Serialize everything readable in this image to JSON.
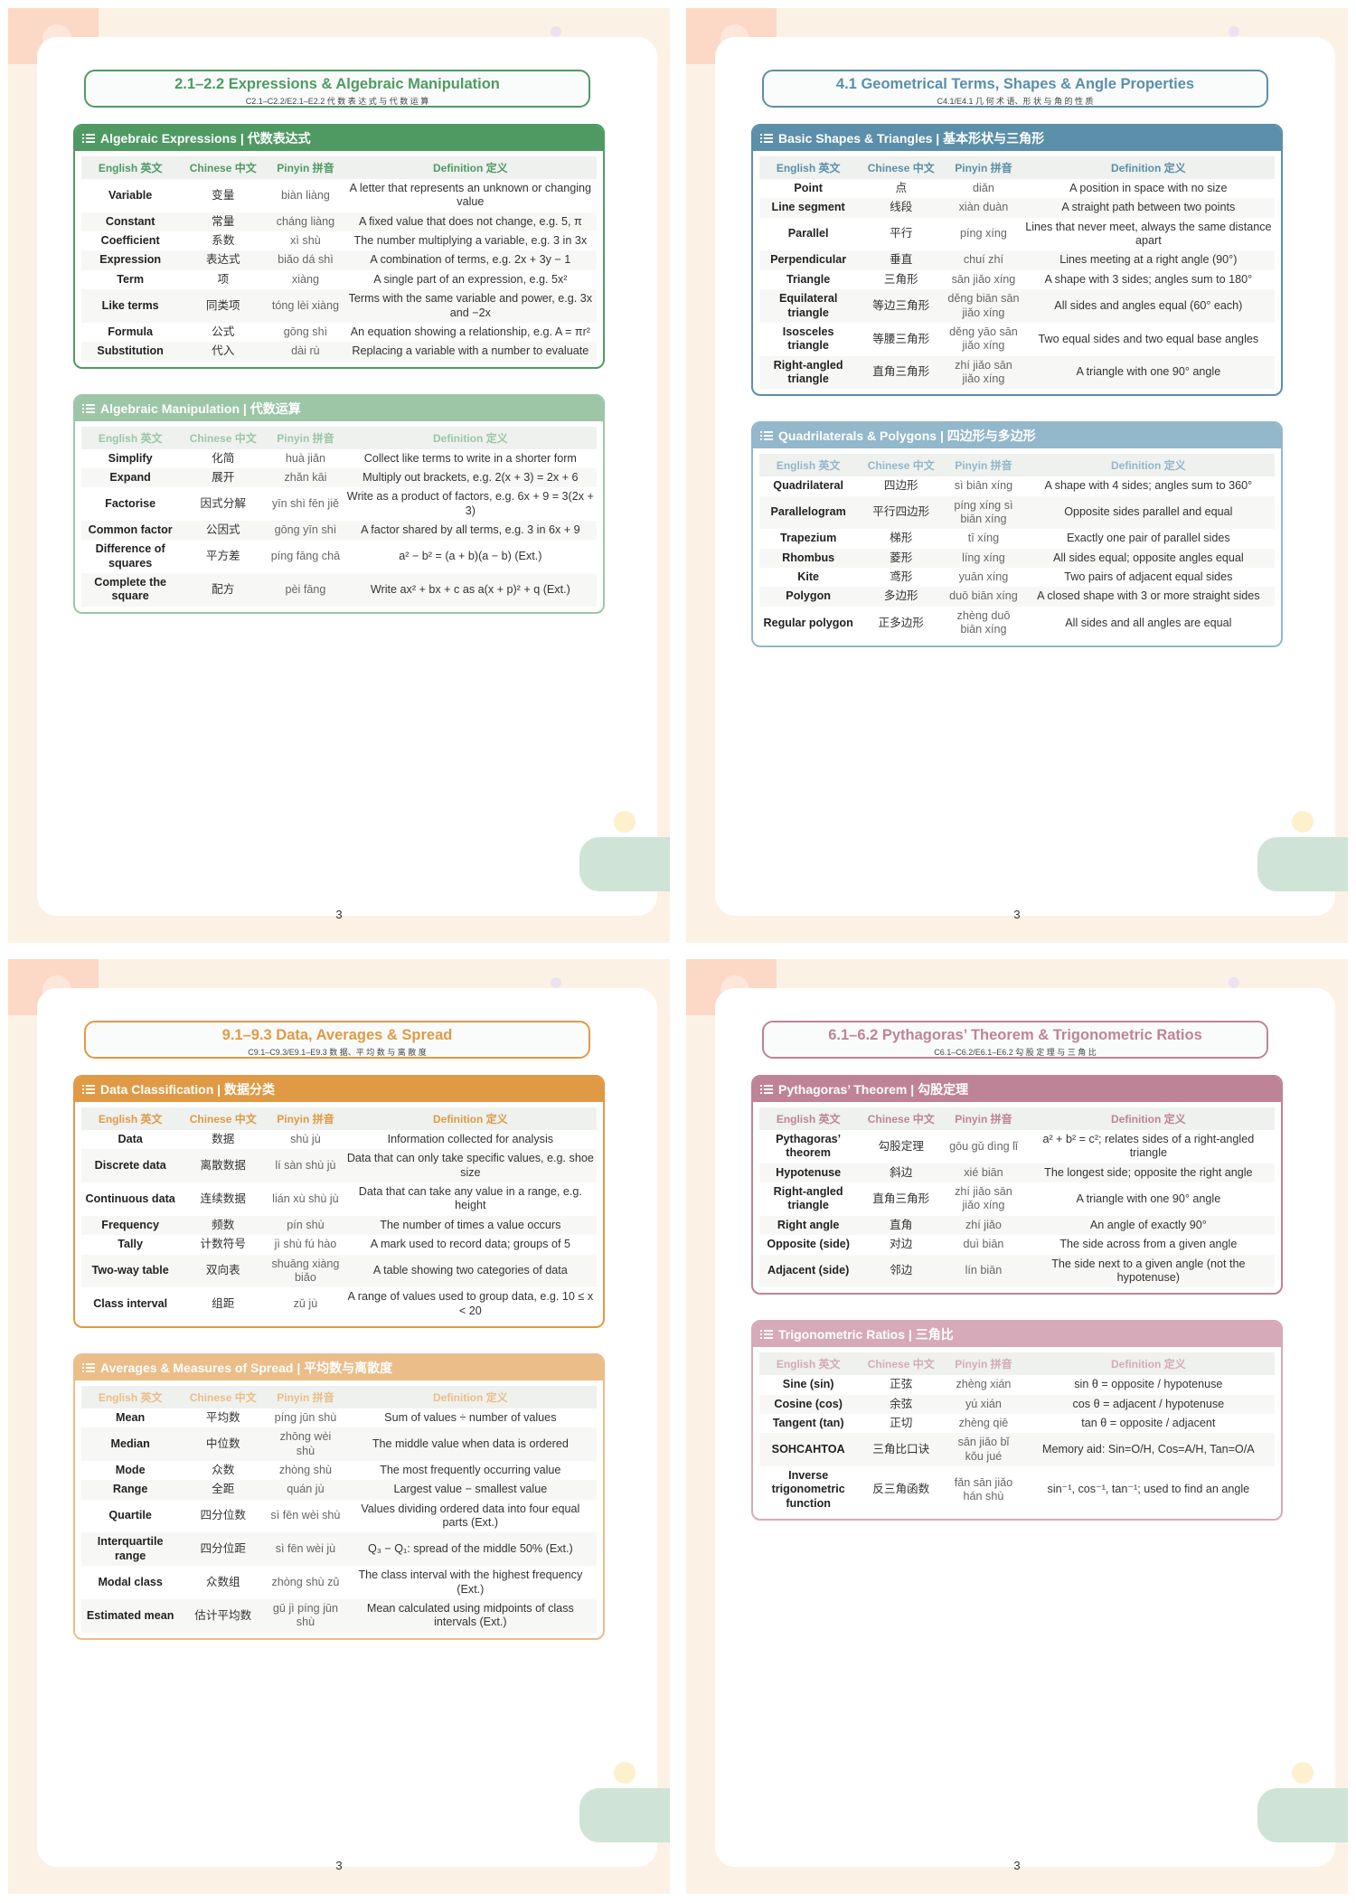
{
  "columns": [
    "English 英文",
    "Chinese 中文",
    "Pinyin 拼音",
    "Definition 定义"
  ],
  "pages": [
    {
      "title": "2.1–2.2 Expressions & Algebraic Manipulation",
      "subtitle": "C2.1–C2.2/E2.1–E2.2 代 数 表 达 式 与 代 数 运 算",
      "page_number": "3",
      "sections": [
        {
          "heading": "Algebraic Expressions | 代数表达式",
          "rows": [
            [
              "Variable",
              "变量",
              "biàn liàng",
              "A letter that represents an unknown or changing value"
            ],
            [
              "Constant",
              "常量",
              "cháng liàng",
              "A fixed value that does not change, e.g. 5, π"
            ],
            [
              "Coefficient",
              "系数",
              "xì shù",
              "The number multiplying a variable, e.g. 3 in 3x"
            ],
            [
              "Expression",
              "表达式",
              "biǎo dá shì",
              "A combination of terms, e.g. 2x + 3y − 1"
            ],
            [
              "Term",
              "项",
              "xiàng",
              "A single part of an expression, e.g. 5x²"
            ],
            [
              "Like terms",
              "同类项",
              "tóng lèi xiàng",
              "Terms with the same variable and power, e.g. 3x and −2x"
            ],
            [
              "Formula",
              "公式",
              "gōng shì",
              "An equation showing a relationship, e.g. A = πr²"
            ],
            [
              "Substitution",
              "代入",
              "dài rù",
              "Replacing a variable with a number to evaluate"
            ]
          ]
        },
        {
          "heading": "Algebraic Manipulation | 代数运算",
          "rows": [
            [
              "Simplify",
              "化简",
              "huà jiǎn",
              "Collect like terms to write in a shorter form"
            ],
            [
              "Expand",
              "展开",
              "zhǎn kāi",
              "Multiply out brackets, e.g. 2(x + 3) = 2x + 6"
            ],
            [
              "Factorise",
              "因式分解",
              "yīn shì fēn jiě",
              "Write as a product of factors, e.g. 6x + 9 = 3(2x + 3)"
            ],
            [
              "Common factor",
              "公因式",
              "gōng yīn shì",
              "A factor shared by all terms, e.g. 3 in 6x + 9"
            ],
            [
              "Difference of squares",
              "平方差",
              "píng fāng chā",
              "a² − b² = (a + b)(a − b) (Ext.)"
            ],
            [
              "Complete the square",
              "配方",
              "pèi fāng",
              "Write ax² + bx + c as a(x + p)² + q (Ext.)"
            ]
          ]
        }
      ]
    },
    {
      "title": "4.1 Geometrical Terms, Shapes & Angle Properties",
      "subtitle": "C4.1/E4.1 几 何 术 语、形 状 与 角 的 性 质",
      "page_number": "3",
      "sections": [
        {
          "heading": "Basic Shapes & Triangles | 基本形状与三角形",
          "rows": [
            [
              "Point",
              "点",
              "diǎn",
              "A position in space with no size"
            ],
            [
              "Line segment",
              "线段",
              "xiàn duàn",
              "A straight path between two points"
            ],
            [
              "Parallel",
              "平行",
              "píng xíng",
              "Lines that never meet, always the same distance apart"
            ],
            [
              "Perpendicular",
              "垂直",
              "chuí zhí",
              "Lines meeting at a right angle (90°)"
            ],
            [
              "Triangle",
              "三角形",
              "sān jiǎo xíng",
              "A shape with 3 sides; angles sum to 180°"
            ],
            [
              "Equilateral triangle",
              "等边三角形",
              "děng biān sān jiǎo xíng",
              "All sides and angles equal (60° each)"
            ],
            [
              "Isosceles triangle",
              "等腰三角形",
              "děng yāo sān jiǎo xíng",
              "Two equal sides and two equal base angles"
            ],
            [
              "Right-angled triangle",
              "直角三角形",
              "zhí jiǎo sān jiǎo xíng",
              "A triangle with one 90° angle"
            ]
          ]
        },
        {
          "heading": "Quadrilaterals & Polygons | 四边形与多边形",
          "rows": [
            [
              "Quadrilateral",
              "四边形",
              "sì biān xíng",
              "A shape with 4 sides; angles sum to 360°"
            ],
            [
              "Parallelogram",
              "平行四边形",
              "píng xíng sì biān xíng",
              "Opposite sides parallel and equal"
            ],
            [
              "Trapezium",
              "梯形",
              "tī xíng",
              "Exactly one pair of parallel sides"
            ],
            [
              "Rhombus",
              "菱形",
              "líng xíng",
              "All sides equal; opposite angles equal"
            ],
            [
              "Kite",
              "鸢形",
              "yuān xíng",
              "Two pairs of adjacent equal sides"
            ],
            [
              "Polygon",
              "多边形",
              "duō biān xíng",
              "A closed shape with 3 or more straight sides"
            ],
            [
              "Regular polygon",
              "正多边形",
              "zhèng duō biān xíng",
              "All sides and all angles are equal"
            ]
          ]
        }
      ]
    },
    {
      "title": "9.1–9.3 Data, Averages & Spread",
      "subtitle": "C9.1–C9.3/E9.1–E9.3 数 据、平 均 数 与 离 散 度",
      "page_number": "3",
      "sections": [
        {
          "heading": "Data Classification | 数据分类",
          "rows": [
            [
              "Data",
              "数据",
              "shù jù",
              "Information collected for analysis"
            ],
            [
              "Discrete data",
              "离散数据",
              "lí sàn shù jù",
              "Data that can only take specific values, e.g. shoe size"
            ],
            [
              "Continuous data",
              "连续数据",
              "lián xù shù jù",
              "Data that can take any value in a range, e.g. height"
            ],
            [
              "Frequency",
              "频数",
              "pín shù",
              "The number of times a value occurs"
            ],
            [
              "Tally",
              "计数符号",
              "jì shù fú hào",
              "A mark used to record data; groups of 5"
            ],
            [
              "Two-way table",
              "双向表",
              "shuāng xiàng biǎo",
              "A table showing two categories of data"
            ],
            [
              "Class interval",
              "组距",
              "zǔ jù",
              "A range of values used to group data, e.g. 10 ≤ x < 20"
            ]
          ]
        },
        {
          "heading": "Averages & Measures of Spread | 平均数与离散度",
          "rows": [
            [
              "Mean",
              "平均数",
              "píng jūn shù",
              "Sum of values ÷ number of values"
            ],
            [
              "Median",
              "中位数",
              "zhōng wèi shù",
              "The middle value when data is ordered"
            ],
            [
              "Mode",
              "众数",
              "zhòng shù",
              "The most frequently occurring value"
            ],
            [
              "Range",
              "全距",
              "quán jù",
              "Largest value − smallest value"
            ],
            [
              "Quartile",
              "四分位数",
              "sì fēn wèi shù",
              "Values dividing ordered data into four equal parts (Ext.)"
            ],
            [
              "Interquartile range",
              "四分位距",
              "sì fēn wèi jù",
              "Q₃ − Q₁: spread of the middle 50% (Ext.)"
            ],
            [
              "Modal class",
              "众数组",
              "zhòng shù zǔ",
              "The class interval with the highest frequency (Ext.)"
            ],
            [
              "Estimated mean",
              "估计平均数",
              "gū jì píng jūn shù",
              "Mean calculated using midpoints of class intervals (Ext.)"
            ]
          ]
        }
      ]
    },
    {
      "title": "6.1–6.2 Pythagoras’ Theorem & Trigonometric Ratios",
      "subtitle": "C6.1–C6.2/E6.1–E6.2 勾 股 定 理 与 三 角 比",
      "page_number": "3",
      "sections": [
        {
          "heading": "Pythagoras’ Theorem | 勾股定理",
          "rows": [
            [
              "Pythagoras’ theorem",
              "勾股定理",
              "gōu gǔ dìng lǐ",
              "a² + b² = c²; relates sides of a right-angled triangle"
            ],
            [
              "Hypotenuse",
              "斜边",
              "xié biān",
              "The longest side; opposite the right angle"
            ],
            [
              "Right-angled triangle",
              "直角三角形",
              "zhí jiǎo sān jiǎo xíng",
              "A triangle with one 90° angle"
            ],
            [
              "Right angle",
              "直角",
              "zhí jiǎo",
              "An angle of exactly 90°"
            ],
            [
              "Opposite (side)",
              "对边",
              "duì biān",
              "The side across from a given angle"
            ],
            [
              "Adjacent (side)",
              "邻边",
              "lín biān",
              "The side next to a given angle (not the hypotenuse)"
            ]
          ]
        },
        {
          "heading": "Trigonometric Ratios | 三角比",
          "rows": [
            [
              "Sine (sin)",
              "正弦",
              "zhèng xián",
              "sin θ = opposite / hypotenuse"
            ],
            [
              "Cosine (cos)",
              "余弦",
              "yú xián",
              "cos θ = adjacent / hypotenuse"
            ],
            [
              "Tangent (tan)",
              "正切",
              "zhèng qiē",
              "tan θ = opposite / adjacent"
            ],
            [
              "SOHCAHTOA",
              "三角比口诀",
              "sān jiǎo bǐ kǒu jué",
              "Memory aid: Sin=O/H, Cos=A/H, Tan=O/A"
            ],
            [
              "Inverse trigonometric function",
              "反三角函数",
              "fǎn sān jiǎo hán shù",
              "sin⁻¹, cos⁻¹, tan⁻¹; used to find an angle"
            ]
          ]
        }
      ]
    }
  ]
}
